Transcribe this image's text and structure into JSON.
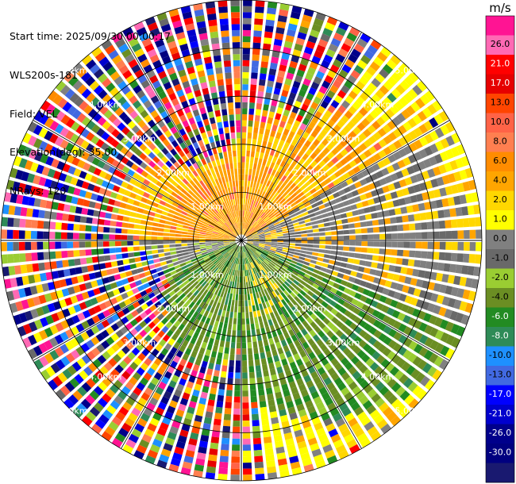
{
  "header": {
    "start_time": "Start time: 2025/09/30 00:00:17",
    "station": "WLS200s-181",
    "field": "Field: VEL",
    "elevation": "Elevation(deg): 35.00",
    "nrays": "NRays: 120"
  },
  "chart_data": {
    "type": "heatmap",
    "projection": "polar-ppi",
    "title": "",
    "field": "VEL",
    "elevation_deg": 35.0,
    "n_rays": 120,
    "range_rings_km": [
      1.0,
      2.0,
      3.0,
      4.0,
      5.0
    ],
    "ring_labels": [
      "1.00km",
      "2.00km",
      "3.00km",
      "4.00km",
      "5.00km"
    ],
    "max_range_km": 5.0,
    "radial_lines_every_deg": 30,
    "colorbar": {
      "unit": "m/s",
      "ticks": [
        "26.0",
        "21.0",
        "17.0",
        "13.0",
        "10.0",
        "8.0",
        "6.0",
        "4.0",
        "2.0",
        "1.0",
        "0.0",
        "-1.0",
        "-2.0",
        "-4.0",
        "-6.0",
        "-8.0",
        "-10.0",
        "-13.0",
        "-17.0",
        "-21.0",
        "-26.0",
        "-30.0"
      ],
      "colors": [
        "#ff1493",
        "#ff69b4",
        "#ff0000",
        "#e60000",
        "#ff4500",
        "#ff6347",
        "#ff7f50",
        "#ff8c00",
        "#ffa500",
        "#ffd700",
        "#ffff00",
        "#808080",
        "#696969",
        "#9acd32",
        "#6b8e23",
        "#228b22",
        "#2e8b57",
        "#1e90ff",
        "#4169e1",
        "#0000ff",
        "#0000cd",
        "#00008b",
        "#000080",
        "#191970"
      ]
    }
  }
}
